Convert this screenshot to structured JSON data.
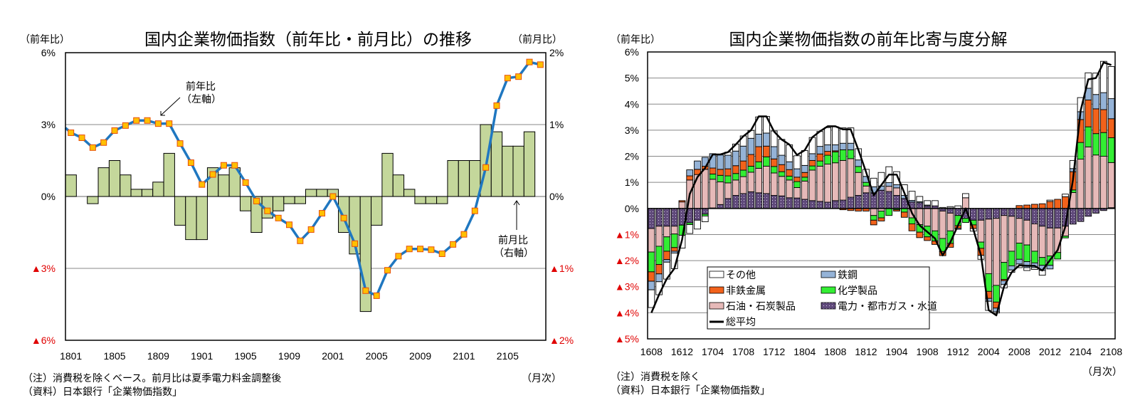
{
  "left_chart_meta": {
    "left_unit": "（前年比）",
    "right_unit": "（前月比）",
    "note": "（注）消費税を除くベース。前月比は夏季電力料金調整後",
    "source": "（資料）日本銀行「企業物価指数」",
    "x_unit": "（月次）",
    "annotation_yoy_1": "前年比",
    "annotation_yoy_2": "（左軸）",
    "annotation_mom_1": "前月比",
    "annotation_mom_2": "（右軸）"
  },
  "right_chart_meta": {
    "unit": "（前年比）",
    "note": "（注）消費税を除く",
    "source": "（資料）日本銀行「企業物価指数」",
    "x_unit": "（月次）"
  },
  "colors": {
    "mom_bar": "#c4d79b",
    "yoy_line": "#1f77c0",
    "marker_fill": "#ffc000",
    "marker_border": "#e8500a",
    "other": "#ffffff",
    "steel": "#95b3d7",
    "nonferrous": "#f2621b",
    "chemical": "#33ee33",
    "petroleum": "#e6b9b8",
    "utilities": "#604a7b",
    "total": "#000000",
    "negative_label": "#e00000",
    "grid": "#888888"
  },
  "chart_data": [
    {
      "type": "bar+line",
      "title": "国内企業物価指数（前年比・前月比）の推移",
      "xlabel": "（月次）",
      "ylabel_left": "（前年比）",
      "ylabel_right": "（前月比）",
      "ylim_left": [
        -6,
        6
      ],
      "ylim_right": [
        -2,
        2
      ],
      "yticks_left": [
        {
          "v": 6,
          "label": "6%"
        },
        {
          "v": 3,
          "label": "3%"
        },
        {
          "v": 0,
          "label": "0%"
        },
        {
          "v": -3,
          "label": "▲3%"
        },
        {
          "v": -6,
          "label": "▲6%"
        }
      ],
      "yticks_right": [
        {
          "v": 2,
          "label": "2%"
        },
        {
          "v": 1,
          "label": "1%"
        },
        {
          "v": 0,
          "label": "0%"
        },
        {
          "v": -1,
          "label": "▲1%"
        },
        {
          "v": -2,
          "label": "▲2%"
        }
      ],
      "grid": true,
      "x": [
        "1801",
        "1802",
        "1803",
        "1804",
        "1805",
        "1806",
        "1807",
        "1808",
        "1809",
        "1810",
        "1811",
        "1812",
        "1901",
        "1902",
        "1903",
        "1904",
        "1905",
        "1906",
        "1907",
        "1908",
        "1909",
        "1910",
        "1911",
        "1912",
        "2001",
        "2002",
        "2003",
        "2004",
        "2005",
        "2006",
        "2007",
        "2008",
        "2009",
        "2010",
        "2011",
        "2012",
        "2101",
        "2102",
        "2103",
        "2104",
        "2105",
        "2106",
        "2107",
        "2108"
      ],
      "xtick_labels": [
        "1801",
        "1805",
        "1809",
        "1901",
        "1905",
        "1909",
        "2001",
        "2005",
        "2009",
        "2101",
        "2105"
      ],
      "series": [
        {
          "name": "前月比（右軸）",
          "type": "bar",
          "axis": "right",
          "values": [
            0.3,
            0,
            -0.1,
            0.4,
            0.5,
            0.3,
            0.1,
            0.1,
            0.2,
            0.6,
            -0.4,
            -0.6,
            -0.6,
            0.4,
            0.3,
            0.4,
            -0.2,
            -0.5,
            -0.3,
            -0.2,
            -0.1,
            -0.1,
            0.1,
            0.1,
            0.1,
            -0.5,
            -0.8,
            -1.6,
            -0.4,
            0.6,
            0.3,
            0.1,
            -0.1,
            -0.1,
            -0.1,
            0.5,
            0.5,
            0.5,
            1.0,
            0.9,
            0.7,
            0.7,
            0.9,
            null
          ]
        },
        {
          "name": "前年比（左軸）",
          "type": "line",
          "axis": "left",
          "values": [
            2.66,
            2.45,
            2.04,
            2.25,
            2.75,
            2.96,
            3.17,
            3.17,
            3.04,
            3.04,
            2.21,
            1.41,
            0.5,
            0.92,
            1.3,
            1.3,
            0.58,
            -0.19,
            -0.6,
            -0.9,
            -1.18,
            -1.85,
            -1.38,
            -0.7,
            0.0,
            -0.9,
            -1.97,
            -3.93,
            -4.14,
            -3.08,
            -2.49,
            -2.19,
            -2.19,
            -2.22,
            -2.39,
            -2.0,
            -1.58,
            -0.6,
            1.21,
            3.79,
            4.94,
            5.0,
            5.61,
            5.5
          ]
        }
      ]
    },
    {
      "type": "stacked-bar+line",
      "title": "国内企業物価指数の前年比寄与度分解",
      "xlabel": "（月次）",
      "ylabel": "（前年比）",
      "ylim": [
        -5,
        6
      ],
      "yticks": [
        {
          "v": 6,
          "label": "6%"
        },
        {
          "v": 5,
          "label": "5%"
        },
        {
          "v": 4,
          "label": "4%"
        },
        {
          "v": 3,
          "label": "3%"
        },
        {
          "v": 2,
          "label": "2%"
        },
        {
          "v": 1,
          "label": "1%"
        },
        {
          "v": 0,
          "label": "0%"
        },
        {
          "v": -1,
          "label": "▲1%"
        },
        {
          "v": -2,
          "label": "▲2%"
        },
        {
          "v": -3,
          "label": "▲3%"
        },
        {
          "v": -4,
          "label": "▲4%"
        },
        {
          "v": -5,
          "label": "▲5%"
        }
      ],
      "grid": true,
      "legend_position": "bottom-left",
      "x": [
        "1608",
        "1609",
        "1610",
        "1611",
        "1612",
        "1701",
        "1702",
        "1703",
        "1704",
        "1705",
        "1706",
        "1707",
        "1708",
        "1709",
        "1710",
        "1711",
        "1712",
        "1801",
        "1802",
        "1803",
        "1804",
        "1805",
        "1806",
        "1807",
        "1808",
        "1809",
        "1810",
        "1811",
        "1812",
        "1901",
        "1902",
        "1903",
        "1904",
        "1905",
        "1906",
        "1907",
        "1908",
        "1909",
        "1910",
        "1911",
        "1912",
        "2001",
        "2002",
        "2003",
        "2004",
        "2005",
        "2006",
        "2007",
        "2008",
        "2009",
        "2010",
        "2011",
        "2012",
        "2101",
        "2102",
        "2103",
        "2104",
        "2105",
        "2106",
        "2107",
        "2108"
      ],
      "xtick_labels": [
        "1608",
        "1612",
        "1704",
        "1708",
        "1712",
        "1804",
        "1808",
        "1812",
        "1904",
        "1908",
        "1912",
        "2004",
        "2008",
        "2012",
        "2104",
        "2108"
      ],
      "stack_series": [
        {
          "key": "utilities",
          "name": "電力・都市ガス・水道",
          "values": [
            -0.77,
            -0.68,
            -0.68,
            -0.68,
            -0.64,
            -0.55,
            -0.45,
            -0.22,
            0.02,
            0.15,
            0.38,
            0.5,
            0.57,
            0.64,
            0.6,
            0.57,
            0.5,
            0.48,
            0.41,
            0.4,
            0.35,
            0.3,
            0.27,
            0.24,
            0.3,
            0.32,
            0.43,
            0.5,
            0.6,
            0.6,
            0.7,
            0.65,
            0.5,
            0.38,
            0.25,
            0.22,
            0.1,
            0.1,
            -0.1,
            -0.18,
            -0.27,
            -0.38,
            -0.45,
            -0.45,
            -0.41,
            -0.38,
            -0.27,
            -0.3,
            -0.38,
            -0.45,
            -0.59,
            -0.68,
            -0.75,
            -0.75,
            -0.68,
            -0.6,
            -0.5,
            -0.3,
            -0.18,
            -0.08,
            0.03
          ]
        },
        {
          "key": "petroleum",
          "name": "石油・石炭製品",
          "values": [
            -0.9,
            -0.77,
            -0.41,
            -0.3,
            0.25,
            1.09,
            1.3,
            1.5,
            1.1,
            0.87,
            0.6,
            0.59,
            0.65,
            0.75,
            0.94,
            1.05,
            0.86,
            0.75,
            0.68,
            0.4,
            0.7,
            1.17,
            1.35,
            1.46,
            1.45,
            1.52,
            1.48,
            0.88,
            0.26,
            -0.27,
            -0.1,
            0.2,
            0.29,
            0,
            -0.36,
            -0.62,
            -0.68,
            -0.86,
            -1.05,
            -0.68,
            0,
            0.41,
            0,
            -0.84,
            -2.09,
            -2.57,
            -1.8,
            -1.34,
            -0.95,
            -0.95,
            -1.05,
            -1.2,
            -1.07,
            -0.94,
            -0.38,
            0.61,
            1.89,
            2.36,
            2.05,
            2.0,
            1.73
          ]
        },
        {
          "key": "chemical",
          "name": "化学製品",
          "values": [
            -0.76,
            -0.7,
            -0.55,
            -0.52,
            -0.39,
            -0.07,
            0,
            -0.07,
            0.2,
            0.25,
            0.27,
            0.25,
            0.25,
            0.23,
            0.25,
            0.36,
            0.25,
            0.18,
            0.15,
            0.23,
            0.15,
            0.16,
            0.2,
            0.34,
            0.42,
            0.41,
            0.34,
            0.23,
            0.14,
            -0.18,
            -0.26,
            -0.27,
            -0.05,
            -0.14,
            -0.23,
            -0.29,
            -0.41,
            -0.39,
            -0.5,
            -0.48,
            -0.39,
            -0.16,
            -0.18,
            -0.24,
            -0.68,
            -0.64,
            -0.65,
            -0.56,
            -0.62,
            -0.64,
            -0.45,
            -0.3,
            -0.36,
            -0.25,
            -0.07,
            0.1,
            0.64,
            0.77,
            0.82,
            0.91,
            0.95
          ]
        },
        {
          "key": "nonferrous",
          "name": "非鉄金属",
          "values": [
            -0.36,
            -0.36,
            -0.32,
            -0.14,
            0.05,
            0.16,
            0.2,
            0.12,
            0.23,
            0.23,
            0.27,
            0.3,
            0.35,
            0.45,
            0.58,
            0.41,
            0.29,
            0.27,
            0.25,
            0.17,
            0.18,
            0.21,
            0.27,
            0.15,
            0.04,
            -0.05,
            -0.08,
            -0.1,
            -0.1,
            -0.18,
            -0.12,
            0,
            -0.05,
            -0.2,
            -0.27,
            -0.21,
            -0.14,
            -0.13,
            -0.16,
            -0.15,
            -0.1,
            0,
            -0.14,
            -0.27,
            -0.27,
            -0.23,
            -0.05,
            0,
            0.11,
            0.13,
            0.16,
            0.18,
            0.27,
            0.35,
            0.45,
            0.7,
            0.88,
            1.03,
            0.95,
            0.88,
            0.73
          ]
        },
        {
          "key": "steel",
          "name": "鉄鋼",
          "values": [
            -0.33,
            -0.3,
            -0.1,
            -0.07,
            0,
            0.23,
            0.32,
            0.34,
            0.55,
            0.55,
            0.52,
            0.56,
            0.57,
            0.62,
            0.48,
            0.5,
            0.47,
            0.36,
            0.3,
            0.32,
            0.27,
            0.26,
            0.29,
            0.25,
            0.23,
            0.25,
            0.25,
            0.25,
            0.23,
            0.23,
            0.16,
            0.14,
            0.12,
            0.12,
            0.06,
            0.04,
            0.03,
            0,
            0,
            0.02,
            -0.04,
            0,
            0,
            0,
            -0.11,
            -0.14,
            -0.14,
            -0.16,
            -0.18,
            -0.23,
            -0.18,
            -0.2,
            -0.14,
            0,
            0,
            0.12,
            0.3,
            0.45,
            0.55,
            0.65,
            0.77
          ]
        },
        {
          "key": "other",
          "name": "その他",
          "values": [
            -0.68,
            -0.5,
            -0.65,
            -0.6,
            -0.49,
            -0.34,
            -0.34,
            -0.22,
            0,
            0,
            0.12,
            0.27,
            0.39,
            0.3,
            0.66,
            0.64,
            0.6,
            0.61,
            0.65,
            0.5,
            0.57,
            0.62,
            0.57,
            0.66,
            0.69,
            0.59,
            0.59,
            0.43,
            0.27,
            0.33,
            0.52,
            0.61,
            0.5,
            0.41,
            0.35,
            0.2,
            0.17,
            0.2,
            0.04,
            0.05,
            0.1,
            0.16,
            -0.1,
            -0.15,
            -0.35,
            -0.05,
            -0.14,
            -0.09,
            -0.14,
            -0.11,
            -0.07,
            -0.18,
            0.05,
            0,
            0.1,
            0.31,
            0.54,
            0.59,
            0.82,
            1.2,
            1.23
          ]
        }
      ],
      "line_series": {
        "key": "total",
        "name": "総平均",
        "values": [
          -4.0,
          -3.3,
          -2.7,
          -2.3,
          -1.2,
          0.55,
          1.2,
          1.55,
          2.07,
          2.07,
          2.16,
          2.45,
          2.77,
          3.0,
          3.53,
          3.53,
          2.95,
          2.64,
          2.45,
          2.05,
          2.23,
          2.73,
          2.96,
          3.15,
          3.15,
          3.03,
          3.03,
          2.25,
          1.4,
          0.5,
          0.9,
          1.3,
          1.3,
          0.6,
          -0.18,
          -0.65,
          -0.9,
          -1.15,
          -1.8,
          -1.3,
          -0.65,
          0.0,
          -0.8,
          -1.8,
          -3.9,
          -4.1,
          -3.0,
          -2.45,
          -2.18,
          -2.2,
          -2.2,
          -2.38,
          -1.98,
          -1.6,
          -0.7,
          1.1,
          3.75,
          4.95,
          5.0,
          5.6,
          5.5
        ]
      },
      "legend": [
        {
          "key": "other",
          "label": "その他"
        },
        {
          "key": "steel",
          "label": "鉄鋼"
        },
        {
          "key": "nonferrous",
          "label": "非鉄金属"
        },
        {
          "key": "chemical",
          "label": "化学製品"
        },
        {
          "key": "petroleum",
          "label": "石油・石炭製品"
        },
        {
          "key": "utilities",
          "label": "電力・都市ガス・水道"
        },
        {
          "key": "total",
          "label": "総平均"
        }
      ]
    }
  ]
}
